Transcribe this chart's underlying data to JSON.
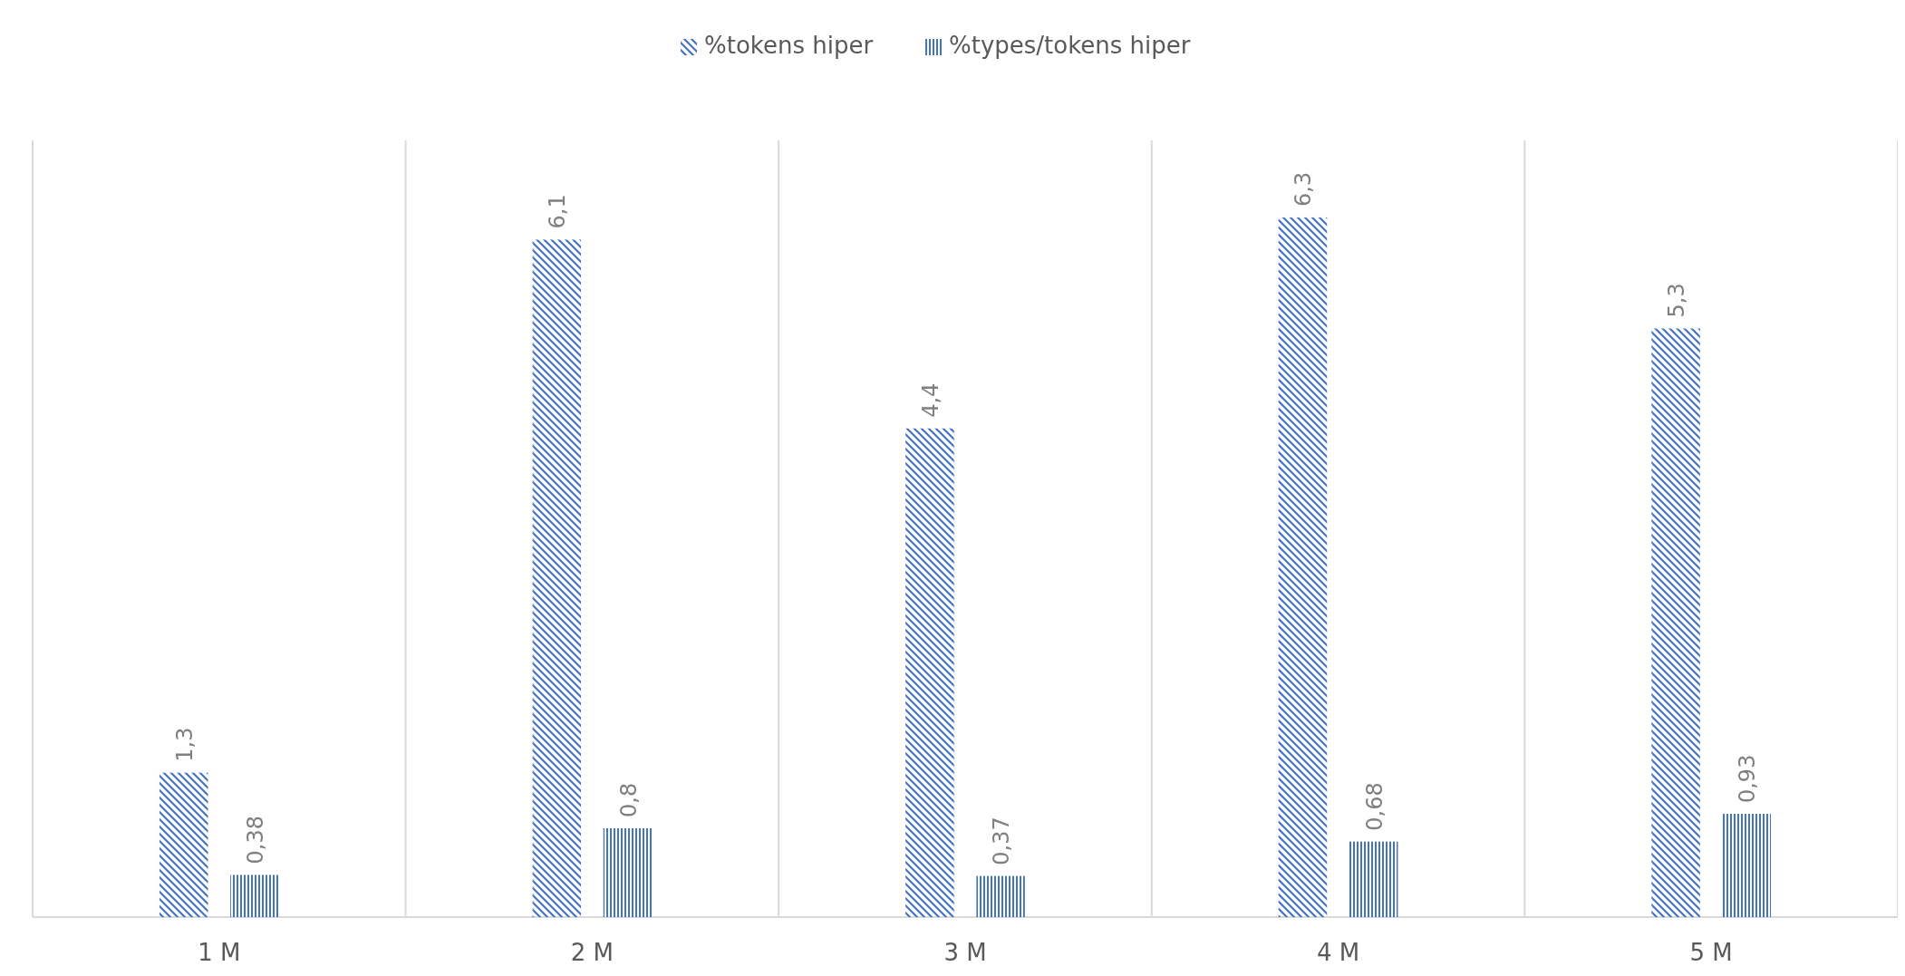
{
  "chart_data": {
    "type": "bar",
    "categories": [
      "1 M",
      "2 M",
      "3 M",
      "4 M",
      "5 M"
    ],
    "series": [
      {
        "name": "%tokens hiper",
        "color": "#4472c4",
        "values": [
          1.3,
          6.1,
          4.4,
          6.3,
          5.3
        ],
        "value_labels": [
          "1,3",
          "6,1",
          "4,4",
          "6,3",
          "5,3"
        ]
      },
      {
        "name": "%types/tokens hiper",
        "color": "#4472c4",
        "values": [
          0.38,
          0.8,
          0.37,
          0.68,
          0.93
        ],
        "value_labels": [
          "0,38",
          "0,8",
          "0,37",
          "0,68",
          "0,93"
        ]
      }
    ],
    "grid": "x",
    "legend": "top"
  }
}
